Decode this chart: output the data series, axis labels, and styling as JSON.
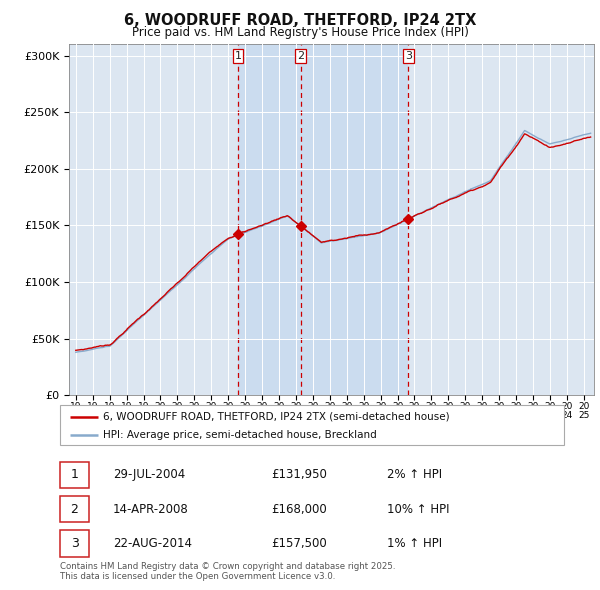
{
  "title": "6, WOODRUFF ROAD, THETFORD, IP24 2TX",
  "subtitle": "Price paid vs. HM Land Registry's House Price Index (HPI)",
  "ylabel_ticks": [
    "£0",
    "£50K",
    "£100K",
    "£150K",
    "£200K",
    "£250K",
    "£300K"
  ],
  "ytick_values": [
    0,
    50000,
    100000,
    150000,
    200000,
    250000,
    300000
  ],
  "ylim": [
    0,
    310000
  ],
  "xlim_start": 1994.6,
  "xlim_end": 2025.6,
  "red_line_color": "#cc0000",
  "blue_line_color": "#88aacc",
  "plot_bg": "#dce6f1",
  "grid_color": "#ffffff",
  "shade_color": "#c5d8ef",
  "sale_markers": [
    {
      "year": 2004.57,
      "price": 131950,
      "label": "1"
    },
    {
      "year": 2008.28,
      "price": 168000,
      "label": "2"
    },
    {
      "year": 2014.64,
      "price": 157500,
      "label": "3"
    }
  ],
  "legend_entries": [
    "6, WOODRUFF ROAD, THETFORD, IP24 2TX (semi-detached house)",
    "HPI: Average price, semi-detached house, Breckland"
  ],
  "table_rows": [
    {
      "num": "1",
      "date": "29-JUL-2004",
      "price": "£131,950",
      "pct": "2% ↑ HPI"
    },
    {
      "num": "2",
      "date": "14-APR-2008",
      "price": "£168,000",
      "pct": "10% ↑ HPI"
    },
    {
      "num": "3",
      "date": "22-AUG-2014",
      "price": "£157,500",
      "pct": "1% ↑ HPI"
    }
  ],
  "footnote": "Contains HM Land Registry data © Crown copyright and database right 2025.\nThis data is licensed under the Open Government Licence v3.0."
}
